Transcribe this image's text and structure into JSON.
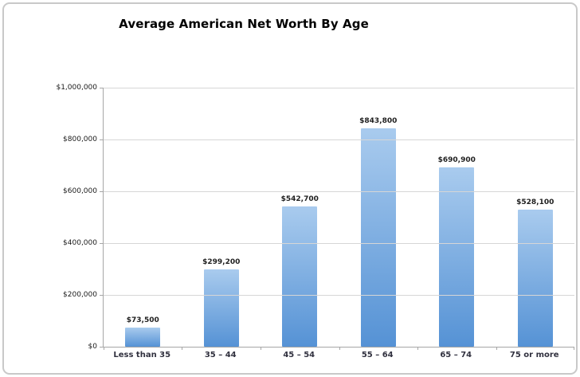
{
  "frame": {
    "background_color": "#ffffff",
    "border_color": "#c9c9c9"
  },
  "chart_data": {
    "type": "bar",
    "title": "Average American Net Worth By Age",
    "categories": [
      "Less than 35",
      "35 – 44",
      "45 – 54",
      "55 – 64",
      "65 – 74",
      "75 or more"
    ],
    "values": [
      73500,
      299200,
      542700,
      843800,
      690900,
      528100
    ],
    "value_labels": [
      "$73,500",
      "$299,200",
      "$542,700",
      "$843,800",
      "$690,900",
      "$528,100"
    ],
    "y_ticks": [
      "$1,000,000",
      "$800,000",
      "$600,000",
      "$400,000",
      "$200,000",
      "$0"
    ],
    "ylim": [
      0,
      1000000
    ],
    "xlabel": "",
    "ylabel": "",
    "grid": true,
    "legend": "none",
    "colors": {
      "bar_gradient_top": "#a9cbee",
      "bar_gradient_bottom": "#5592d5",
      "gridline": "#d6d6d6",
      "axis_line": "#a6a6a6",
      "value_label_text": "#1f1f1f",
      "category_label_text": "#31313f"
    }
  }
}
